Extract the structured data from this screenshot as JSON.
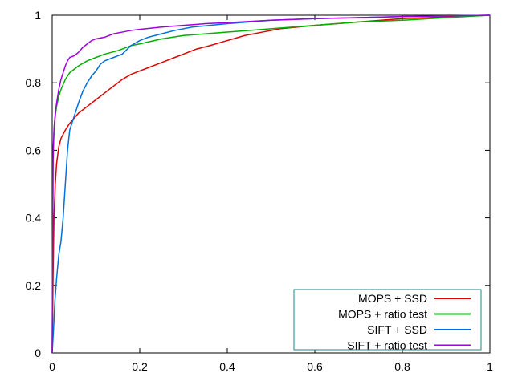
{
  "chart_data": {
    "type": "line",
    "title": "",
    "xlabel": "",
    "ylabel": "",
    "xlim": [
      0,
      1
    ],
    "ylim": [
      0,
      1
    ],
    "x_ticks": [
      "0",
      "0.2",
      "0.4",
      "0.6",
      "0.8",
      "1"
    ],
    "y_ticks": [
      "0",
      "0.2",
      "0.4",
      "0.6",
      "0.8",
      "1"
    ],
    "grid": false,
    "legend_position": "bottom-right",
    "series": [
      {
        "name": "MOPS + SSD",
        "color": "#e00000",
        "points": [
          [
            0,
            0
          ],
          [
            0.002,
            0.23
          ],
          [
            0.004,
            0.4
          ],
          [
            0.007,
            0.5
          ],
          [
            0.01,
            0.56
          ],
          [
            0.015,
            0.61
          ],
          [
            0.02,
            0.635
          ],
          [
            0.03,
            0.66
          ],
          [
            0.04,
            0.68
          ],
          [
            0.05,
            0.695
          ],
          [
            0.06,
            0.71
          ],
          [
            0.07,
            0.72
          ],
          [
            0.08,
            0.73
          ],
          [
            0.1,
            0.75
          ],
          [
            0.12,
            0.77
          ],
          [
            0.14,
            0.79
          ],
          [
            0.16,
            0.81
          ],
          [
            0.18,
            0.825
          ],
          [
            0.2,
            0.835
          ],
          [
            0.22,
            0.845
          ],
          [
            0.25,
            0.86
          ],
          [
            0.28,
            0.875
          ],
          [
            0.3,
            0.885
          ],
          [
            0.33,
            0.9
          ],
          [
            0.36,
            0.91
          ],
          [
            0.4,
            0.925
          ],
          [
            0.44,
            0.94
          ],
          [
            0.48,
            0.95
          ],
          [
            0.52,
            0.96
          ],
          [
            0.56,
            0.965
          ],
          [
            0.6,
            0.97
          ],
          [
            0.65,
            0.975
          ],
          [
            0.7,
            0.98
          ],
          [
            0.8,
            0.99
          ],
          [
            0.9,
            0.995
          ],
          [
            1,
            1
          ]
        ]
      },
      {
        "name": "MOPS + ratio test",
        "color": "#00b000",
        "points": [
          [
            0,
            0
          ],
          [
            0.002,
            0.6
          ],
          [
            0.005,
            0.68
          ],
          [
            0.01,
            0.73
          ],
          [
            0.015,
            0.76
          ],
          [
            0.02,
            0.78
          ],
          [
            0.03,
            0.81
          ],
          [
            0.04,
            0.83
          ],
          [
            0.05,
            0.84
          ],
          [
            0.06,
            0.85
          ],
          [
            0.08,
            0.865
          ],
          [
            0.1,
            0.875
          ],
          [
            0.12,
            0.885
          ],
          [
            0.15,
            0.895
          ],
          [
            0.18,
            0.91
          ],
          [
            0.2,
            0.915
          ],
          [
            0.25,
            0.93
          ],
          [
            0.3,
            0.94
          ],
          [
            0.35,
            0.945
          ],
          [
            0.4,
            0.95
          ],
          [
            0.5,
            0.96
          ],
          [
            0.6,
            0.97
          ],
          [
            0.7,
            0.98
          ],
          [
            0.8,
            0.985
          ],
          [
            0.9,
            0.993
          ],
          [
            1,
            1
          ]
        ]
      },
      {
        "name": "SIFT + SSD",
        "color": "#0070e0",
        "points": [
          [
            0,
            0
          ],
          [
            0.003,
            0.07
          ],
          [
            0.006,
            0.15
          ],
          [
            0.01,
            0.22
          ],
          [
            0.015,
            0.29
          ],
          [
            0.02,
            0.33
          ],
          [
            0.025,
            0.4
          ],
          [
            0.03,
            0.5
          ],
          [
            0.035,
            0.6
          ],
          [
            0.04,
            0.66
          ],
          [
            0.05,
            0.7
          ],
          [
            0.06,
            0.74
          ],
          [
            0.07,
            0.775
          ],
          [
            0.08,
            0.8
          ],
          [
            0.09,
            0.82
          ],
          [
            0.1,
            0.835
          ],
          [
            0.11,
            0.855
          ],
          [
            0.12,
            0.865
          ],
          [
            0.14,
            0.875
          ],
          [
            0.16,
            0.885
          ],
          [
            0.18,
            0.91
          ],
          [
            0.2,
            0.925
          ],
          [
            0.22,
            0.935
          ],
          [
            0.25,
            0.945
          ],
          [
            0.28,
            0.955
          ],
          [
            0.32,
            0.965
          ],
          [
            0.36,
            0.97
          ],
          [
            0.4,
            0.975
          ],
          [
            0.45,
            0.98
          ],
          [
            0.5,
            0.985
          ],
          [
            0.6,
            0.99
          ],
          [
            0.7,
            0.993
          ],
          [
            0.8,
            0.996
          ],
          [
            0.9,
            0.998
          ],
          [
            1,
            1
          ]
        ]
      },
      {
        "name": "SIFT + ratio test",
        "color": "#a000e0",
        "points": [
          [
            0,
            0
          ],
          [
            0.002,
            0.57
          ],
          [
            0.004,
            0.66
          ],
          [
            0.007,
            0.71
          ],
          [
            0.01,
            0.74
          ],
          [
            0.015,
            0.78
          ],
          [
            0.02,
            0.81
          ],
          [
            0.025,
            0.83
          ],
          [
            0.03,
            0.85
          ],
          [
            0.035,
            0.865
          ],
          [
            0.04,
            0.875
          ],
          [
            0.05,
            0.88
          ],
          [
            0.06,
            0.89
          ],
          [
            0.07,
            0.905
          ],
          [
            0.08,
            0.915
          ],
          [
            0.09,
            0.925
          ],
          [
            0.1,
            0.93
          ],
          [
            0.12,
            0.935
          ],
          [
            0.14,
            0.945
          ],
          [
            0.16,
            0.95
          ],
          [
            0.18,
            0.955
          ],
          [
            0.2,
            0.958
          ],
          [
            0.25,
            0.965
          ],
          [
            0.3,
            0.97
          ],
          [
            0.35,
            0.975
          ],
          [
            0.4,
            0.978
          ],
          [
            0.5,
            0.985
          ],
          [
            0.6,
            0.99
          ],
          [
            0.7,
            0.993
          ],
          [
            0.8,
            0.996
          ],
          [
            0.9,
            0.998
          ],
          [
            1,
            1
          ]
        ]
      }
    ]
  }
}
